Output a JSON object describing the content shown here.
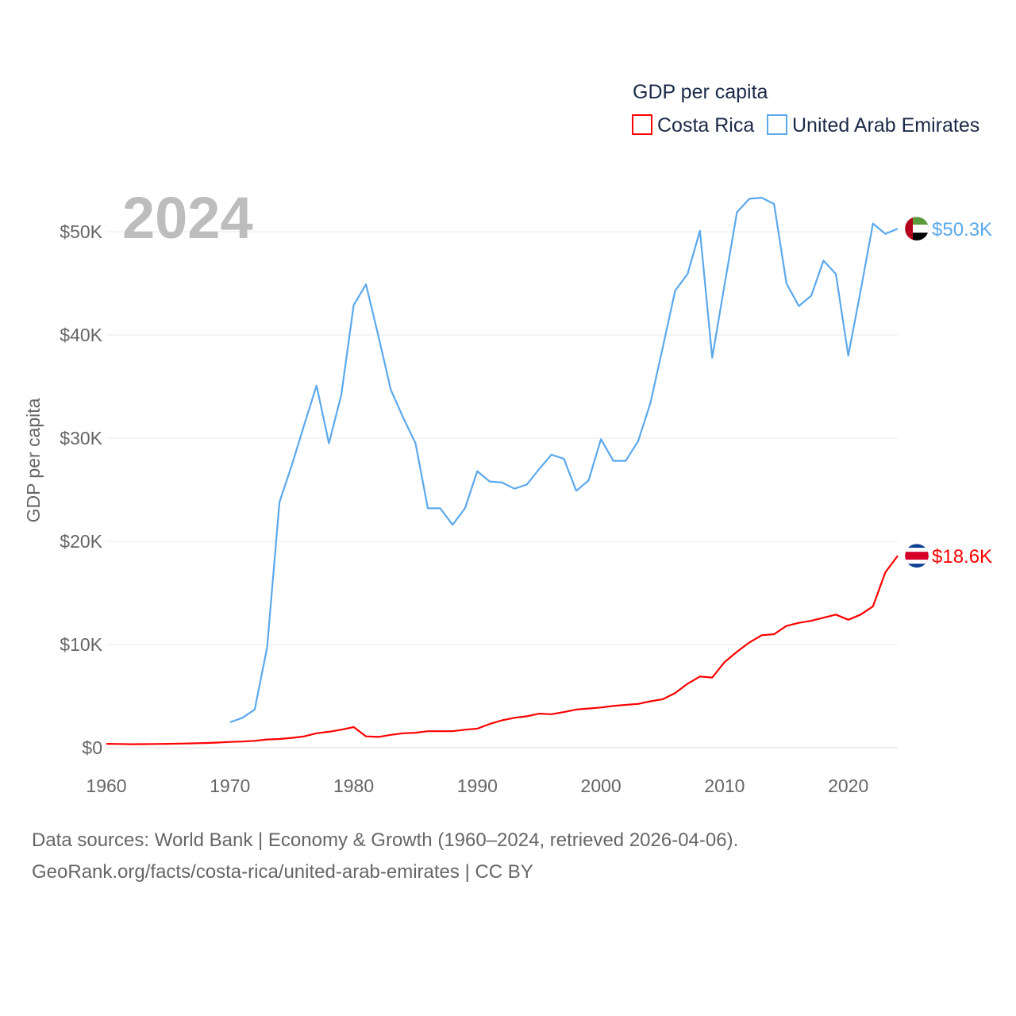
{
  "chart_data": {
    "type": "line",
    "title": "GDP per capita",
    "ylabel": "GDP per capita",
    "xlabel": "",
    "current_year_label": "2024",
    "xlim": [
      1960,
      2024
    ],
    "ylim": [
      0,
      55000
    ],
    "xticks": [
      1960,
      1970,
      1980,
      1990,
      2000,
      2010,
      2020
    ],
    "xtick_labels": [
      "1960",
      "1970",
      "1980",
      "1990",
      "2000",
      "2010",
      "2020"
    ],
    "yticks": [
      0,
      10000,
      20000,
      30000,
      40000,
      50000
    ],
    "ytick_labels": [
      "$0",
      "$10K",
      "$20K",
      "$30K",
      "$40K",
      "$50K"
    ],
    "grid": true,
    "legend_position": "top-right",
    "series": [
      {
        "name": "Costa Rica",
        "color": "#ff0000",
        "end_label": "$18.6K",
        "flag": "costa-rica",
        "start_year": 1960,
        "values": [
          380,
          360,
          340,
          350,
          360,
          380,
          400,
          420,
          450,
          500,
          560,
          600,
          670,
          800,
          850,
          950,
          1100,
          1400,
          1550,
          1750,
          2000,
          1100,
          1050,
          1250,
          1400,
          1450,
          1600,
          1600,
          1600,
          1750,
          1850,
          2300,
          2650,
          2900,
          3050,
          3300,
          3250,
          3450,
          3700,
          3800,
          3900,
          4050,
          4150,
          4250,
          4500,
          4700,
          5300,
          6200,
          6900,
          6800,
          8300,
          9300,
          10200,
          10900,
          11000,
          11800,
          12100,
          12300,
          12600,
          12900,
          12400,
          12900,
          13700,
          17000,
          18600
        ]
      },
      {
        "name": "United Arab Emirates",
        "color": "#5ba8ec",
        "end_label": "$50.3K",
        "flag": "united-arab-emirates",
        "start_year": 1970,
        "values": [
          2460,
          2900,
          3700,
          9700,
          23800,
          27400,
          31300,
          35100,
          29500,
          34200,
          42900,
          44900,
          39900,
          34700,
          32000,
          29500,
          23200,
          23200,
          21600,
          23200,
          26800,
          25800,
          25700,
          25100,
          25500,
          27000,
          28400,
          28000,
          24900,
          25900,
          29900,
          27800,
          27800,
          29700,
          33400,
          38800,
          44300,
          45900,
          50100,
          37800,
          44900,
          51900,
          53200,
          53300,
          52700,
          45000,
          42800,
          43800,
          47200,
          45900,
          38000,
          44300,
          50800,
          49800,
          50300
        ]
      }
    ]
  },
  "footer": {
    "line1": "Data sources: World Bank | Economy & Growth (1960–2024, retrieved 2026-04-06).",
    "line2": "GeoRank.org/facts/costa-rica/united-arab-emirates | CC BY"
  }
}
